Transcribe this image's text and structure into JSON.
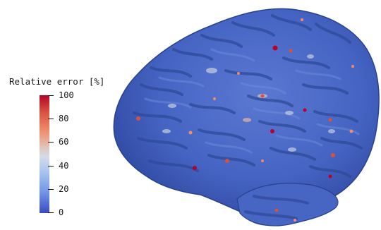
{
  "legend": {
    "title": "Relative error [%]",
    "ticks": [
      "100",
      "80",
      "60",
      "40",
      "20",
      "0"
    ],
    "colormap": [
      "#3b4cc0",
      "#7396e6",
      "#a6c2ef",
      "#dddcdc",
      "#ef8c6c",
      "#d85140",
      "#b40426"
    ]
  },
  "brain": {
    "surface_color": "#4a68c4",
    "sulcus_color": "#2f4a9a",
    "hotspot_colors": [
      "#b40426",
      "#d85140",
      "#ef8c6c",
      "#dddcdc"
    ]
  }
}
